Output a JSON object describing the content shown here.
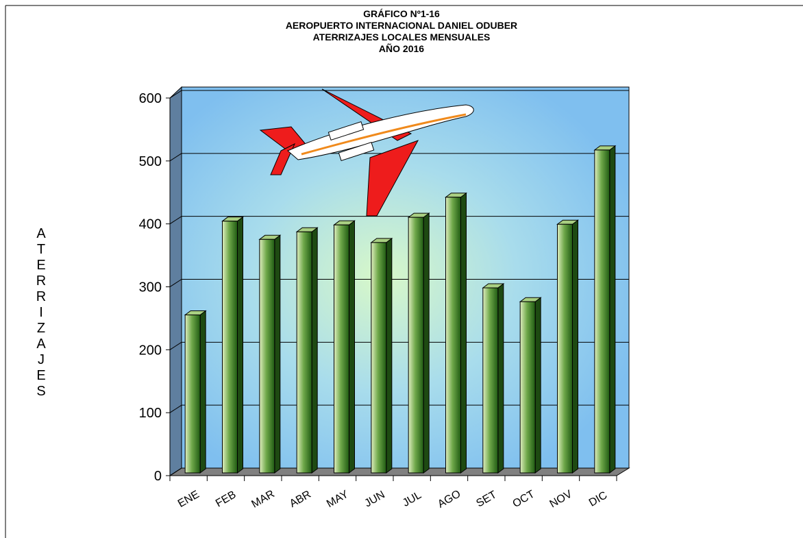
{
  "chart_data": {
    "type": "bar",
    "title": [
      "GRÁFICO Nº1-16",
      "AEROPUERTO INTERNACIONAL DANIEL ODUBER",
      "ATERRIZAJES LOCALES MENSUALES",
      "AÑO 2016"
    ],
    "y_label": "ATERRIZAJES",
    "categories": [
      "ENE",
      "FEB",
      "MAR",
      "ABR",
      "MAY",
      "JUN",
      "JUL",
      "AGO",
      "SET",
      "OCT",
      "NOV",
      "DIC"
    ],
    "values": [
      251,
      400,
      371,
      383,
      394,
      366,
      406,
      438,
      294,
      272,
      395,
      513
    ],
    "color": "#3f8a2a",
    "ylim": [
      0,
      600
    ],
    "yticks": [
      0,
      100,
      200,
      300,
      400,
      500,
      600
    ],
    "grid": true
  }
}
